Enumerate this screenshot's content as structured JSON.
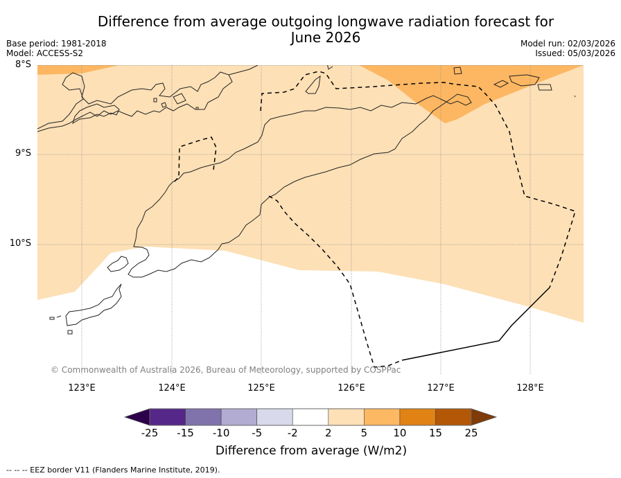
{
  "header": {
    "title_line1": "Difference from average outgoing longwave radiation forecast for",
    "title_line2": "June 2026",
    "base_period": "Base period: 1981-2018",
    "model": "Model: ACCESS-S2",
    "model_run": "Model run: 02/03/2026",
    "issued": "Issued: 05/03/2026"
  },
  "map": {
    "lat_labels": [
      "8°S",
      "9°S",
      "10°S"
    ],
    "lon_labels": [
      "123°E",
      "124°E",
      "125°E",
      "126°E",
      "127°E",
      "128°E"
    ],
    "copyright": "© Commonwealth of Australia 2026, Bureau of Meteorology, supported by COSPPac",
    "extent": {
      "lon_min": 122.5,
      "lon_max": 128.6,
      "lat_max": -8.0,
      "lat_min": -11.4
    },
    "regions": [
      {
        "category": "2 to 5",
        "color": "#fde0b6",
        "description": "most of map north of ~10°S"
      },
      {
        "category": "5 to 10",
        "color": "#fdb762",
        "description": "north-east sector near 126.5–128.5°E, 8–8.6°S and small strip at far north-west"
      },
      {
        "category": "-2 to 2",
        "color": "#ffffff",
        "description": "southern part of map"
      }
    ]
  },
  "colorbar": {
    "ticks": [
      "-25",
      "-15",
      "-10",
      "-5",
      "-2",
      "2",
      "5",
      "10",
      "15",
      "25"
    ],
    "colors": [
      "#2d004b",
      "#542788",
      "#8073ac",
      "#b2abd2",
      "#d8daeb",
      "#ffffff",
      "#fee0b6",
      "#fdb863",
      "#e08214",
      "#b35806",
      "#7f3b08"
    ],
    "label": "Difference from average (W/m2)"
  },
  "footer": {
    "eez_note": "--  --  -- EEZ border V11 (Flanders Marine Institute, 2019)."
  }
}
